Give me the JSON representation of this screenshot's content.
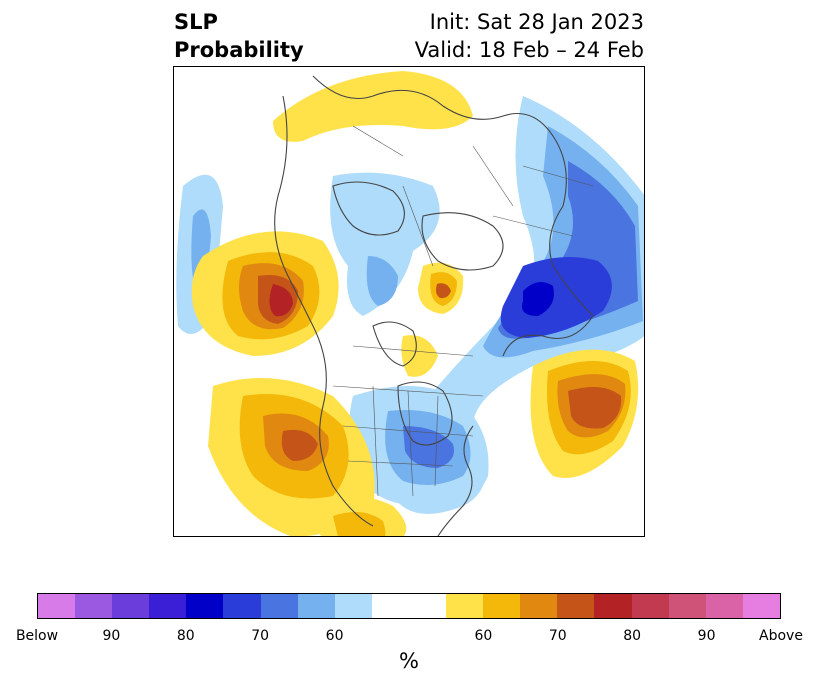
{
  "title": {
    "line1": "SLP",
    "line2": "Probability"
  },
  "subtitle": {
    "init": "Init: Sat 28 Jan 2023",
    "valid": "Valid: 18 Feb – 24 Feb"
  },
  "colorbar": {
    "unit": "%",
    "colors": [
      "#d67be8",
      "#9a59e0",
      "#6b3ddb",
      "#3a1fd6",
      "#0000c8",
      "#2a3dd9",
      "#4a74e0",
      "#75b1ef",
      "#aedcfa",
      "#ffffff",
      "#ffffff",
      "#ffe24a",
      "#f3b80a",
      "#e08810",
      "#c45418",
      "#b32225",
      "#c23a4f",
      "#cf5378",
      "#da62a6",
      "#e67de0"
    ],
    "tick_labels": [
      "Below",
      "90",
      "80",
      "70",
      "60",
      "60",
      "70",
      "80",
      "90",
      "Above"
    ]
  },
  "map": {
    "projection": "north polar stereographic",
    "features": [
      "coastlines",
      "country borders",
      "state/province borders"
    ]
  }
}
